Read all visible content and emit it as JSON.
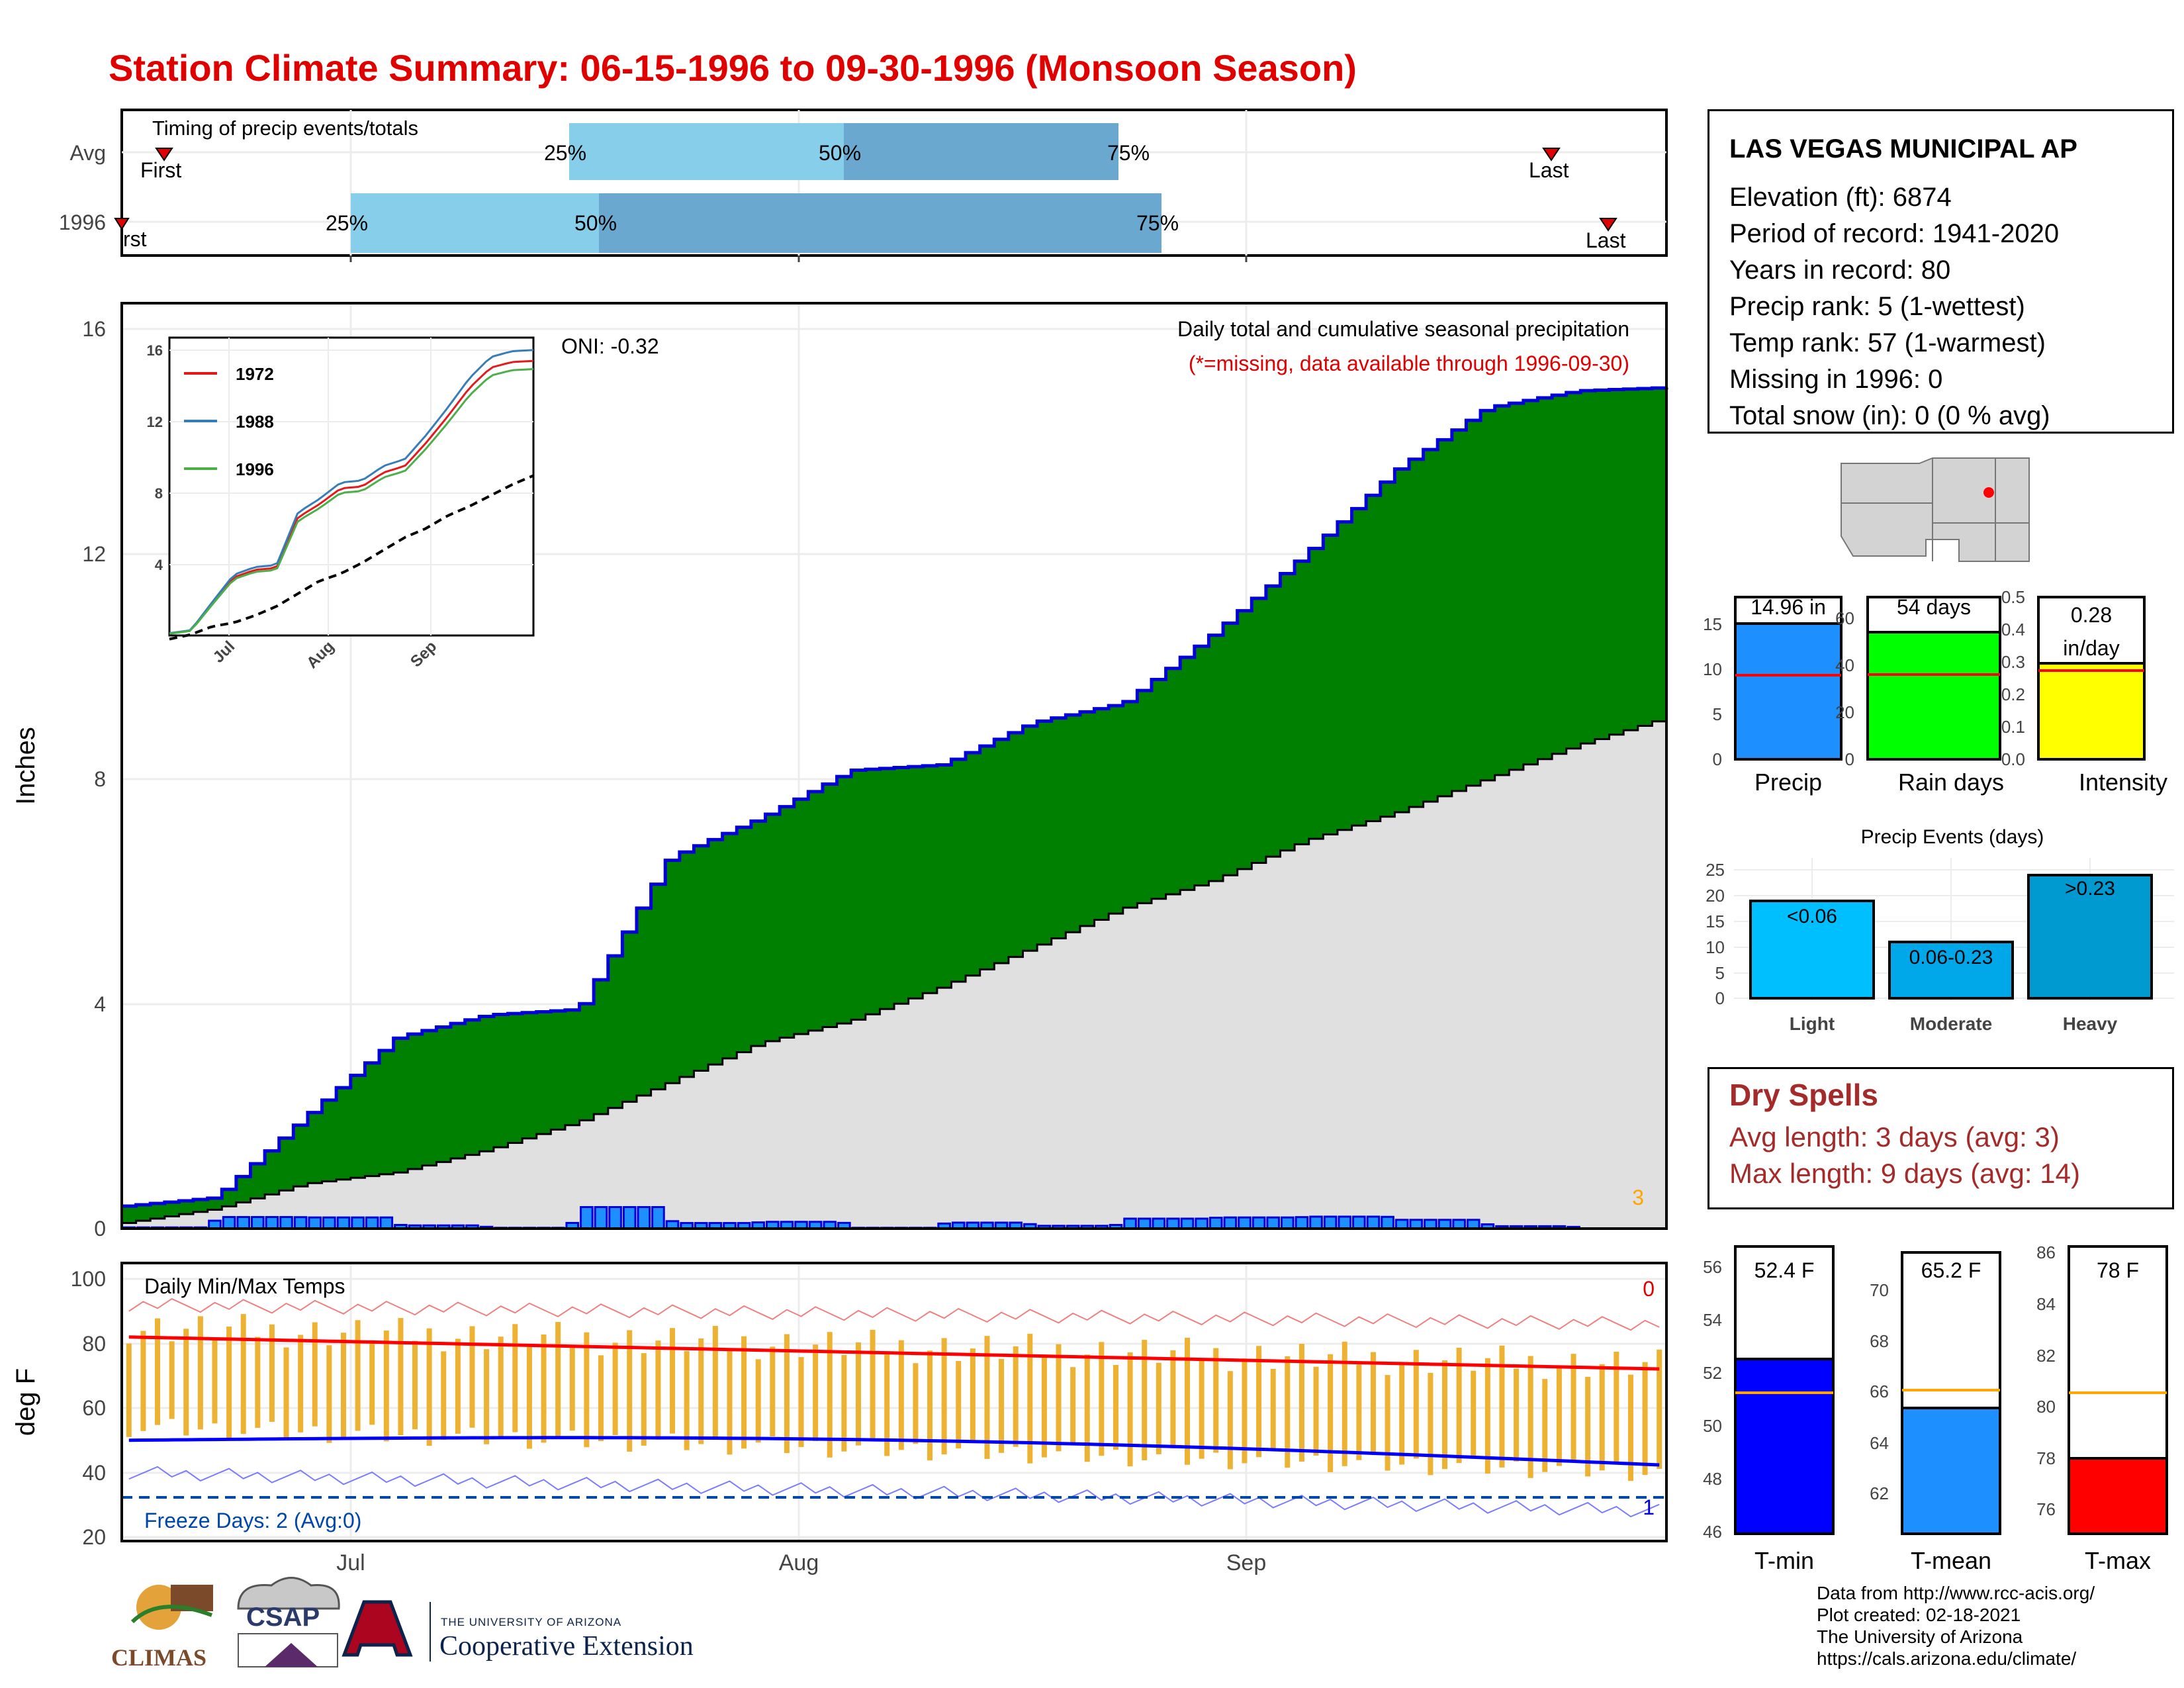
{
  "title": "Station Climate Summary: 06-15-1996 to 09-30-1996 (Monsoon Season)",
  "colors": {
    "title": "#e00000",
    "green": "#008000",
    "blue_line": "#0000dd",
    "bar_fill": "#1e8fff",
    "avg_fill": "#e0e0e0",
    "q_light": "#87ceeb",
    "q_dark": "#6aa8d0",
    "tmax": "#ff0000",
    "tmin": "#0000ff",
    "tbar": "#eeb233",
    "dry": "#a52a2a"
  },
  "timing": {
    "label": "Timing of precip events/totals",
    "rows": [
      "Avg",
      "1996"
    ],
    "first": "First",
    "last": "Last",
    "first_cut": "rst",
    "p25": "25%",
    "p50": "50%",
    "p75": "75%"
  },
  "station": {
    "name": "LAS VEGAS MUNICIPAL AP",
    "lines": [
      "Elevation (ft): 6874",
      "Period of record: 1941-2020",
      "Years in record: 80",
      "Precip rank: 5 (1-wettest)",
      "Temp rank: 57 (1-warmest)",
      "Missing in 1996: 0",
      "Total snow (in): 0 (0 % avg)"
    ]
  },
  "precip_panel": {
    "ylabel": "Inches",
    "yticks": [
      "0",
      "4",
      "8",
      "12",
      "16"
    ],
    "oni": "ONI: -0.32",
    "caption": "Daily total and cumulative seasonal precipitation",
    "missing_note": "(*=missing, data available through 1996-09-30)",
    "missing_count": "3"
  },
  "inset": {
    "yticks": [
      "4",
      "8",
      "12",
      "16"
    ],
    "xticks": [
      "Jul",
      "Aug",
      "Sep"
    ],
    "legend": [
      "1972",
      "1988",
      "1996"
    ]
  },
  "temp_panel": {
    "ylabel": "deg F",
    "yticks": [
      "20",
      "40",
      "60",
      "80",
      "100"
    ],
    "label": "Daily Min/Max Temps",
    "freeze": "Freeze Days: 2 (Avg:0)",
    "count_top": "0",
    "count_bot": "1"
  },
  "xaxis": [
    "Jul",
    "Aug",
    "Sep"
  ],
  "summary_bars": {
    "precip": {
      "label": "Precip",
      "value_label": "14.96 in",
      "yticks": [
        "0",
        "5",
        "10",
        "15"
      ]
    },
    "raindays": {
      "label": "Rain days",
      "value_label": "54 days",
      "yticks": [
        "0",
        "20",
        "40",
        "60"
      ]
    },
    "intensity": {
      "label": "Intensity",
      "value_label_1": "0.28",
      "value_label_2": "in/day",
      "yticks": [
        "0.0",
        "0.1",
        "0.2",
        "0.3",
        "0.4",
        "0.5"
      ]
    }
  },
  "events": {
    "title": "Precip Events (days)",
    "yticks": [
      "0",
      "5",
      "10",
      "15",
      "20",
      "25"
    ],
    "cats": [
      "Light",
      "Moderate",
      "Heavy"
    ],
    "bar_labels": [
      "<0.06",
      "0.06-0.23",
      ">0.23"
    ]
  },
  "dry_spells": {
    "title": "Dry Spells",
    "avg": "Avg length: 3 days (avg: 3)",
    "max": "Max length: 9 days (avg: 14)"
  },
  "temp_bars": {
    "tmin": {
      "label": "T-min",
      "value_label": "52.4 F",
      "yticks": [
        "46",
        "48",
        "50",
        "52",
        "54",
        "56"
      ]
    },
    "tmean": {
      "label": "T-mean",
      "value_label": "65.2 F",
      "yticks": [
        "62",
        "64",
        "66",
        "68",
        "70"
      ]
    },
    "tmax": {
      "label": "T-max",
      "value_label": "78 F",
      "yticks": [
        "76",
        "78",
        "80",
        "82",
        "84",
        "86"
      ]
    }
  },
  "credits": [
    "Data from http://www.rcc-acis.org/",
    "Plot created: 02-18-2021",
    "The University of Arizona",
    "https://cals.arizona.edu/climate/"
  ],
  "logos": {
    "climas": "CLIMAS",
    "csap": "CSAP",
    "coop_small": "THE UNIVERSITY OF ARIZONA",
    "coop_big": "Cooperative Extension"
  },
  "chart_data": [
    {
      "type": "area",
      "name": "cumulative precipitation",
      "x": [
        "06-15",
        "06-22",
        "06-29",
        "07-01",
        "07-08",
        "07-15",
        "07-22",
        "07-29",
        "08-01",
        "08-08",
        "08-15",
        "08-22",
        "08-29",
        "09-05",
        "09-12",
        "09-19",
        "09-26",
        "09-30"
      ],
      "series": [
        {
          "name": "1996 cumulative",
          "values": [
            0.4,
            0.55,
            2.0,
            3.4,
            3.8,
            3.9,
            6.6,
            7.3,
            8.15,
            8.25,
            9.0,
            9.35,
            10.6,
            12.0,
            13.5,
            14.6,
            14.9,
            14.96
          ]
        },
        {
          "name": "average cumulative",
          "values": [
            0.1,
            0.35,
            0.8,
            1.0,
            1.4,
            1.9,
            2.6,
            3.3,
            3.7,
            4.3,
            5.0,
            5.7,
            6.2,
            6.9,
            7.4,
            8.0,
            8.6,
            9.1
          ]
        }
      ],
      "ylim": [
        0,
        16
      ]
    },
    {
      "type": "bar",
      "name": "summary",
      "categories": [
        "Precip",
        "Rain days",
        "Intensity"
      ],
      "values": [
        14.96,
        54,
        0.28
      ],
      "averages": [
        9.4,
        36,
        0.26
      ]
    },
    {
      "type": "bar",
      "name": "precip events",
      "categories": [
        "Light",
        "Moderate",
        "Heavy"
      ],
      "values": [
        19,
        11,
        24
      ],
      "ylim": [
        0,
        25
      ]
    },
    {
      "type": "bar",
      "name": "temperature",
      "categories": [
        "T-min",
        "T-mean",
        "T-max"
      ],
      "values": [
        52.4,
        65.2,
        78
      ],
      "averages": [
        51.3,
        65.9,
        80.5
      ]
    }
  ]
}
